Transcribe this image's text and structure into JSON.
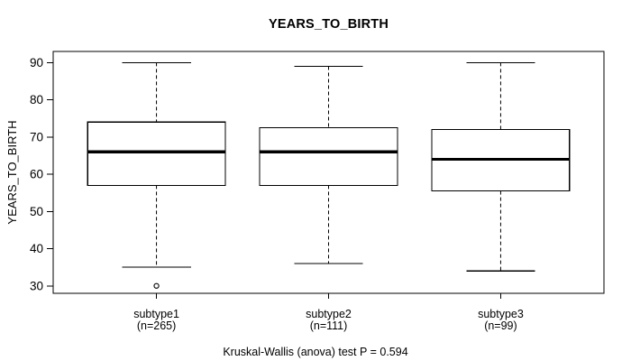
{
  "title": "YEARS_TO_BIRTH",
  "y_axis": {
    "label": "YEARS_TO_BIRTH"
  },
  "caption": "Kruskal-Wallis (anova) test P = 0.594",
  "colors": {
    "foreground": "#000000",
    "background": "#ffffff"
  },
  "chart_data": {
    "type": "boxplot",
    "title": "YEARS_TO_BIRTH",
    "xlabel": "",
    "ylabel": "YEARS_TO_BIRTH",
    "ylim": [
      28,
      93
    ],
    "yticks": [
      30,
      40,
      50,
      60,
      70,
      80,
      90
    ],
    "grid": false,
    "legend": "none",
    "footnote": "Kruskal-Wallis (anova) test P = 0.594",
    "groups": [
      {
        "label": "subtype1",
        "sublabel": "(n=265)",
        "n": 265,
        "whisker_low": 35,
        "q1": 57,
        "median": 66,
        "q3": 74,
        "whisker_high": 90,
        "outliers": [
          30
        ]
      },
      {
        "label": "subtype2",
        "sublabel": "(n=111)",
        "n": 111,
        "whisker_low": 36,
        "q1": 57,
        "median": 66,
        "q3": 72.5,
        "whisker_high": 89,
        "outliers": []
      },
      {
        "label": "subtype3",
        "sublabel": "(n=99)",
        "n": 99,
        "whisker_low": 34,
        "q1": 55.5,
        "median": 64,
        "q3": 72,
        "whisker_high": 90,
        "outliers": []
      }
    ]
  }
}
